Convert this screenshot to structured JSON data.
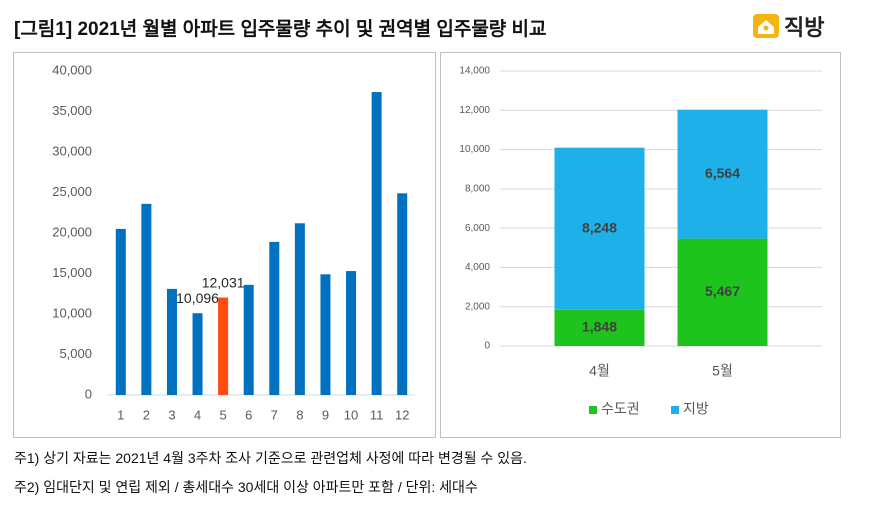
{
  "header": {
    "title": "[그림1] 2021년 월별 아파트 입주물량 추이 및 권역별 입주물량 비교",
    "logo": "직방"
  },
  "chart_data": [
    {
      "type": "bar",
      "categories": [
        "1",
        "2",
        "3",
        "4",
        "5",
        "6",
        "7",
        "8",
        "9",
        "10",
        "11",
        "12"
      ],
      "values": [
        20500,
        23600,
        13100,
        10096,
        12031,
        13600,
        18900,
        21200,
        14900,
        15300,
        37400,
        24900
      ],
      "value_labels": [
        null,
        null,
        null,
        "10,096",
        "12,031",
        null,
        null,
        null,
        null,
        null,
        null,
        null
      ],
      "colors": [
        "#0070c0",
        "#0070c0",
        "#0070c0",
        "#0070c0",
        "#ff4b0f",
        "#0070c0",
        "#0070c0",
        "#0070c0",
        "#0070c0",
        "#0070c0",
        "#0070c0",
        "#0070c0"
      ],
      "ylim": [
        0,
        40000
      ],
      "yticks": [
        0,
        {
          "value": 5000,
          "label": "5,000"
        },
        {
          "value": 10000,
          "label": "10,000"
        },
        {
          "value": 15000,
          "label": "15,000"
        },
        {
          "value": 20000,
          "label": "20,000"
        },
        {
          "value": 25000,
          "label": "25,000"
        },
        {
          "value": 30000,
          "label": "30,000"
        },
        {
          "value": 35000,
          "label": "35,000"
        },
        {
          "value": 40000,
          "label": "40,000"
        }
      ],
      "grid": false
    },
    {
      "type": "bar",
      "stacked": true,
      "categories": [
        "4월",
        "5월"
      ],
      "series": [
        {
          "name": "수도권",
          "color": "#1ec31e",
          "values": [
            1848,
            5467
          ],
          "value_labels": [
            "1,848",
            "5,467"
          ]
        },
        {
          "name": "지방",
          "color": "#1eb1e9",
          "values": [
            8248,
            6564
          ],
          "value_labels": [
            "8,248",
            "6,564"
          ]
        }
      ],
      "ylim": [
        0,
        14000
      ],
      "yticks": [
        0,
        {
          "value": 2000,
          "label": "2,000"
        },
        {
          "value": 4000,
          "label": "4,000"
        },
        {
          "value": 6000,
          "label": "6,000"
        },
        {
          "value": 8000,
          "label": "8,000"
        },
        {
          "value": 10000,
          "label": "10,000"
        },
        {
          "value": 12000,
          "label": "12,000"
        },
        {
          "value": 14000,
          "label": "14,000"
        }
      ],
      "grid": true,
      "legend": "bottom"
    }
  ],
  "notes": [
    "주1) 상기 자료는 2021년 4월 3주차 조사 기준으로 관련업체 사정에 따라 변경될 수 있음.",
    "주2) 임대단지 및 연립 제외 / 총세대수 30세대 이상 아파트만 포함 / 단위: 세대수"
  ]
}
